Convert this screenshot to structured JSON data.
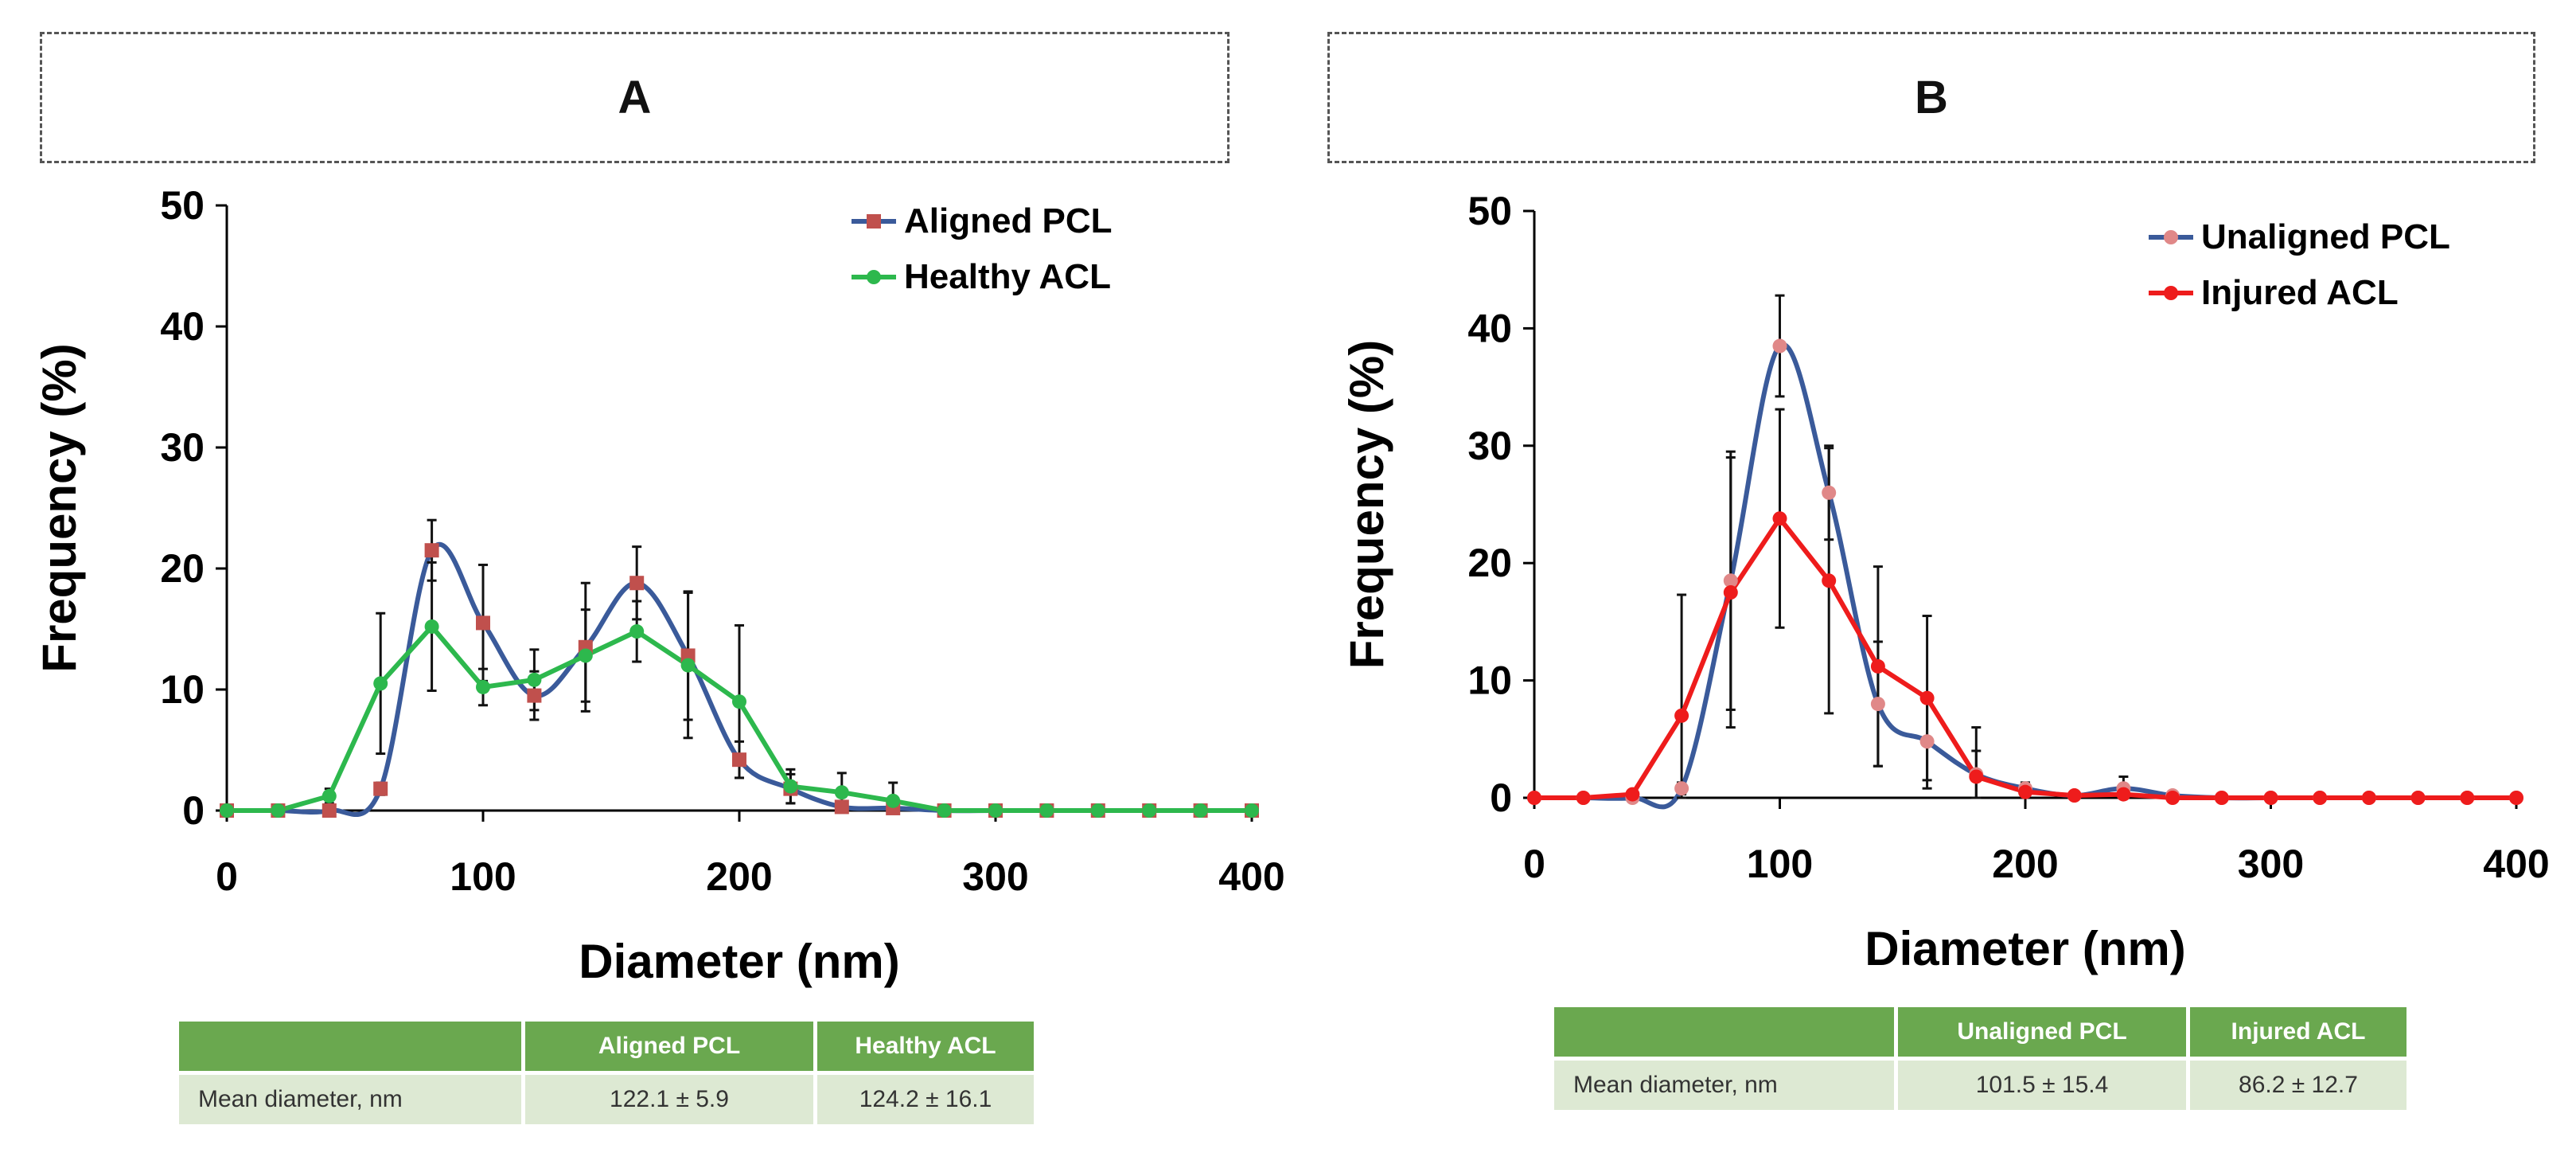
{
  "panels": [
    {
      "id": "A",
      "label": "A",
      "table": {
        "headers": [
          "",
          "Aligned PCL",
          "Healthy ACL"
        ],
        "row_label": "Mean diameter, nm",
        "values": [
          "122.1 ± 5.9",
          "124.2 ± 16.1"
        ]
      }
    },
    {
      "id": "B",
      "label": "B",
      "table": {
        "headers": [
          "",
          "Unaligned PCL",
          "Injured ACL"
        ],
        "row_label": "Mean diameter, nm",
        "values": [
          "101.5 ± 15.4",
          "86.2 ± 12.7"
        ]
      }
    }
  ],
  "chart_data": [
    {
      "type": "line",
      "title": "A",
      "xlabel": "Diameter (nm)",
      "ylabel": "Frequency (%)",
      "xlim": [
        0,
        400
      ],
      "ylim": [
        0,
        50
      ],
      "xticks": [
        0,
        100,
        200,
        300,
        400
      ],
      "yticks": [
        0,
        10,
        20,
        30,
        40,
        50
      ],
      "grid": false,
      "legend_position": "top-right",
      "x": [
        0,
        20,
        40,
        60,
        80,
        100,
        120,
        140,
        160,
        180,
        200,
        220,
        240,
        260,
        280,
        300,
        320,
        340,
        360,
        380,
        400
      ],
      "series": [
        {
          "name": "Aligned PCL",
          "color": "#3a5a9a",
          "marker": "square",
          "marker_color": "#c0504d",
          "smooth": true,
          "values": [
            0,
            0,
            0,
            1.8,
            21.5,
            15.5,
            9.5,
            13.5,
            18.8,
            12.8,
            4.2,
            1.8,
            0.3,
            0.2,
            0,
            0,
            0,
            0,
            0,
            0,
            0
          ],
          "errors": [
            0,
            0,
            0,
            0.5,
            2.5,
            4.8,
            2.0,
            5.3,
            3.0,
            5.3,
            1.5,
            1.2,
            0.3,
            0.3,
            0,
            0,
            0,
            0,
            0,
            0,
            0
          ]
        },
        {
          "name": "Healthy ACL",
          "color": "#2db84d",
          "marker": "circle",
          "marker_color": "#2db84d",
          "smooth": false,
          "values": [
            0,
            0,
            1.2,
            10.5,
            15.2,
            10.2,
            10.8,
            12.8,
            14.8,
            12.0,
            9.0,
            2.0,
            1.5,
            0.8,
            0,
            0,
            0,
            0,
            0,
            0,
            0
          ],
          "errors": [
            0,
            0,
            0.6,
            5.8,
            5.3,
            1.5,
            2.5,
            3.8,
            2.5,
            6.0,
            6.3,
            1.4,
            1.6,
            1.5,
            0,
            0,
            0,
            0,
            0,
            0,
            0
          ]
        }
      ]
    },
    {
      "type": "line",
      "title": "B",
      "xlabel": "Diameter (nm)",
      "ylabel": "Frequency (%)",
      "xlim": [
        0,
        400
      ],
      "ylim": [
        0,
        50
      ],
      "xticks": [
        0,
        100,
        200,
        300,
        400
      ],
      "yticks": [
        0,
        10,
        20,
        30,
        40,
        50
      ],
      "grid": false,
      "legend_position": "top-right",
      "x": [
        0,
        20,
        40,
        60,
        80,
        100,
        120,
        140,
        160,
        180,
        200,
        220,
        240,
        260,
        280,
        300,
        320,
        340,
        360,
        380,
        400
      ],
      "series": [
        {
          "name": "Unaligned PCL",
          "color": "#3a5a9a",
          "marker": "circle",
          "marker_color": "#e08888",
          "smooth": true,
          "values": [
            0,
            0,
            0,
            0.8,
            18.5,
            38.5,
            26.0,
            8.0,
            4.8,
            2.0,
            0.8,
            0.2,
            0.8,
            0.2,
            0,
            0,
            0,
            0,
            0,
            0,
            0
          ],
          "errors": [
            0,
            0,
            0,
            0.5,
            11.0,
            4.3,
            4.0,
            5.3,
            4.0,
            2.0,
            0.5,
            0.2,
            1.0,
            0.2,
            0,
            0,
            0,
            0,
            0,
            0,
            0
          ]
        },
        {
          "name": "Injured ACL",
          "color": "#ee1c1c",
          "marker": "circle",
          "marker_color": "#ee1c1c",
          "smooth": false,
          "values": [
            0,
            0,
            0.3,
            7.0,
            17.5,
            23.8,
            18.5,
            11.2,
            8.5,
            1.8,
            0.5,
            0.2,
            0.3,
            0,
            0,
            0,
            0,
            0,
            0,
            0,
            0
          ],
          "errors": [
            0,
            0,
            0,
            10.3,
            11.5,
            9.3,
            11.3,
            8.5,
            7.0,
            4.2,
            0.5,
            0,
            0.5,
            0,
            0,
            0,
            0,
            0,
            0,
            0,
            0
          ]
        }
      ]
    }
  ]
}
